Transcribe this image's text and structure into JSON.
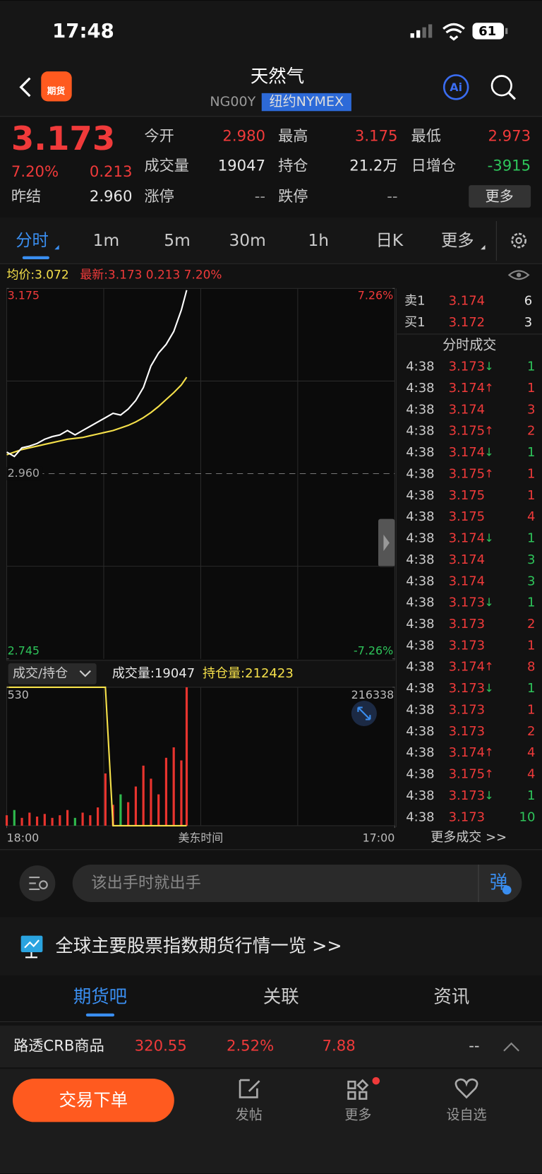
{
  "status_bar": {
    "time": "17:48",
    "battery": "61"
  },
  "header": {
    "title": "天然气",
    "code": "NG00Y",
    "exchange": "纽约NYMEX",
    "ai": "Ai"
  },
  "quote": {
    "price": "3.173",
    "change_pct": "7.20%",
    "change": "0.213",
    "prev_label": "昨结",
    "prev_value": "2.960",
    "more": "更多",
    "fields": [
      {
        "label": "今开",
        "value": "2.980",
        "color": "#f03a3a"
      },
      {
        "label": "最高",
        "value": "3.175",
        "color": "#f03a3a"
      },
      {
        "label": "最低",
        "value": "2.973",
        "color": "#f03a3a"
      },
      {
        "label": "成交量",
        "value": "19047",
        "color": "#e8e8e8"
      },
      {
        "label": "持仓",
        "value": "21.2万",
        "color": "#e8e8e8"
      },
      {
        "label": "日增仓",
        "value": "-3915",
        "color": "#2ec45a"
      },
      {
        "label": "涨停",
        "value": "--",
        "color": "#999999"
      },
      {
        "label": "跌停",
        "value": "--",
        "color": "#999999"
      }
    ]
  },
  "tabs": [
    "分时",
    "1m",
    "5m",
    "30m",
    "1h",
    "日K",
    "更多"
  ],
  "info": {
    "avg": "均价:3.072",
    "latest": "最新:3.173 0.213 7.20%"
  },
  "chart_data": [
    {
      "type": "line",
      "x": [
        0,
        27,
        54,
        81,
        108,
        135,
        162,
        189,
        216,
        243,
        270,
        297,
        324,
        351,
        378,
        405,
        432,
        459,
        486,
        513,
        540,
        567,
        594,
        621,
        640
      ],
      "xlim": [
        0,
        1380
      ],
      "series": [
        {
          "color": "#ffffff",
          "values": [
            2.985,
            2.98,
            2.99,
            2.992,
            2.995,
            3.0,
            3.003,
            3.005,
            3.01,
            3.005,
            3.01,
            3.015,
            3.02,
            3.025,
            3.03,
            3.028,
            3.035,
            3.045,
            3.06,
            3.085,
            3.1,
            3.11,
            3.125,
            3.15,
            3.173
          ]
        },
        {
          "color": "#f5e04a",
          "values": [
            2.982,
            2.985,
            2.988,
            2.99,
            2.992,
            2.994,
            2.996,
            2.998,
            3.0,
            3.001,
            3.002,
            3.004,
            3.006,
            3.008,
            3.01,
            3.013,
            3.016,
            3.02,
            3.025,
            3.031,
            3.038,
            3.046,
            3.054,
            3.063,
            3.072
          ]
        }
      ],
      "ylim": [
        2.745,
        3.175
      ],
      "yticks": [
        3.175,
        {
          "value": 2.96,
          "label": "2.960"
        },
        2.745
      ],
      "y2lim": [
        -7.26,
        7.26
      ],
      "y2ticks": [
        {
          "value": 7.26,
          "label": "7.26%"
        },
        {
          "value": -7.26,
          "label": "-7.26%"
        }
      ],
      "grid": true
    },
    {
      "type": "bar",
      "x": [
        0,
        27,
        54,
        81,
        108,
        135,
        162,
        189,
        216,
        243,
        270,
        297,
        324,
        351,
        378,
        405,
        432,
        459,
        486,
        513,
        540,
        567,
        594,
        621,
        640
      ],
      "xlim": [
        0,
        1380
      ],
      "values": [
        40,
        60,
        30,
        50,
        35,
        45,
        30,
        40,
        60,
        30,
        50,
        40,
        70,
        200,
        80,
        120,
        90,
        150,
        230,
        180,
        120,
        260,
        300,
        250,
        530
      ],
      "up_color": "#e8342e",
      "down_color": "#2eb84c",
      "ylim": [
        0,
        530
      ],
      "yticks": [
        530
      ],
      "open_interest": {
        "color": "#f5e04a",
        "axis": "y2",
        "values": [
          216338,
          216338,
          216338,
          216338,
          216338,
          216338,
          216338,
          216338,
          216338,
          216338,
          216338,
          216338,
          216338,
          216338,
          212423,
          212423,
          212423,
          212423,
          212423,
          212423,
          212423,
          212423,
          212423,
          212423,
          212423
        ]
      },
      "y2lim": [
        212423,
        216338
      ],
      "y2ticks": [
        216338
      ],
      "xticks": [
        {
          "value": 0,
          "label": "18:00"
        },
        {
          "value": 1380,
          "label": "17:00"
        }
      ],
      "xlabel": "美东时间",
      "grid": true
    }
  ],
  "volume_header": {
    "selector": "成交/持仓",
    "volume": "成交量:19047",
    "open_interest": "持仓量:212423"
  },
  "order_book": [
    {
      "label": "卖1",
      "price": "3.174",
      "qty": "6"
    },
    {
      "label": "买1",
      "price": "3.172",
      "qty": "3"
    }
  ],
  "trades": {
    "title": "分时成交",
    "more": "更多成交 >>",
    "rows": [
      {
        "time": "4:38",
        "price": "3.173",
        "dir": "↓",
        "qty": "1",
        "qty_color": "#2ec45a"
      },
      {
        "time": "4:38",
        "price": "3.174",
        "dir": "↑",
        "qty": "1",
        "qty_color": "#f03a3a"
      },
      {
        "time": "4:38",
        "price": "3.174",
        "qty": "3",
        "qty_color": "#f03a3a"
      },
      {
        "time": "4:38",
        "price": "3.175",
        "dir": "↑",
        "qty": "2",
        "qty_color": "#f03a3a"
      },
      {
        "time": "4:38",
        "price": "3.174",
        "dir": "↓",
        "qty": "1",
        "qty_color": "#2ec45a"
      },
      {
        "time": "4:38",
        "price": "3.175",
        "dir": "↑",
        "qty": "1",
        "qty_color": "#f03a3a"
      },
      {
        "time": "4:38",
        "price": "3.175",
        "qty": "1",
        "qty_color": "#f03a3a"
      },
      {
        "time": "4:38",
        "price": "3.175",
        "qty": "4",
        "qty_color": "#f03a3a"
      },
      {
        "time": "4:38",
        "price": "3.174",
        "dir": "↓",
        "qty": "1",
        "qty_color": "#2ec45a"
      },
      {
        "time": "4:38",
        "price": "3.174",
        "qty": "3",
        "qty_color": "#2ec45a"
      },
      {
        "time": "4:38",
        "price": "3.174",
        "qty": "3",
        "qty_color": "#2ec45a"
      },
      {
        "time": "4:38",
        "price": "3.173",
        "dir": "↓",
        "qty": "1",
        "qty_color": "#2ec45a"
      },
      {
        "time": "4:38",
        "price": "3.173",
        "qty": "2",
        "qty_color": "#f03a3a"
      },
      {
        "time": "4:38",
        "price": "3.173",
        "qty": "1",
        "qty_color": "#f03a3a"
      },
      {
        "time": "4:38",
        "price": "3.174",
        "dir": "↑",
        "qty": "8",
        "qty_color": "#f03a3a"
      },
      {
        "time": "4:38",
        "price": "3.173",
        "dir": "↓",
        "qty": "1",
        "qty_color": "#2ec45a"
      },
      {
        "time": "4:38",
        "price": "3.173",
        "qty": "1",
        "qty_color": "#f03a3a"
      },
      {
        "time": "4:38",
        "price": "3.173",
        "qty": "2",
        "qty_color": "#f03a3a"
      },
      {
        "time": "4:38",
        "price": "3.174",
        "dir": "↑",
        "qty": "4",
        "qty_color": "#f03a3a"
      },
      {
        "time": "4:38",
        "price": "3.175",
        "dir": "↑",
        "qty": "4",
        "qty_color": "#f03a3a"
      },
      {
        "time": "4:38",
        "price": "3.173",
        "dir": "↓",
        "qty": "1",
        "qty_color": "#2ec45a"
      },
      {
        "time": "4:38",
        "price": "3.173",
        "qty": "10",
        "qty_color": "#2ec45a"
      }
    ]
  },
  "comment": {
    "placeholder": "该出手时就出手",
    "danmaku": "弹"
  },
  "banner": "全球主要股票指数期货行情一览 >>",
  "sections": [
    "期货吧",
    "关联",
    "资讯"
  ],
  "ticker": {
    "name": "路透CRB商品",
    "price": "320.55",
    "change_pct": "2.52%",
    "change": "7.88",
    "extra": "--"
  },
  "bottom_bar": {
    "order": "交易下单",
    "items": [
      "发帖",
      "更多",
      "设自选"
    ]
  }
}
